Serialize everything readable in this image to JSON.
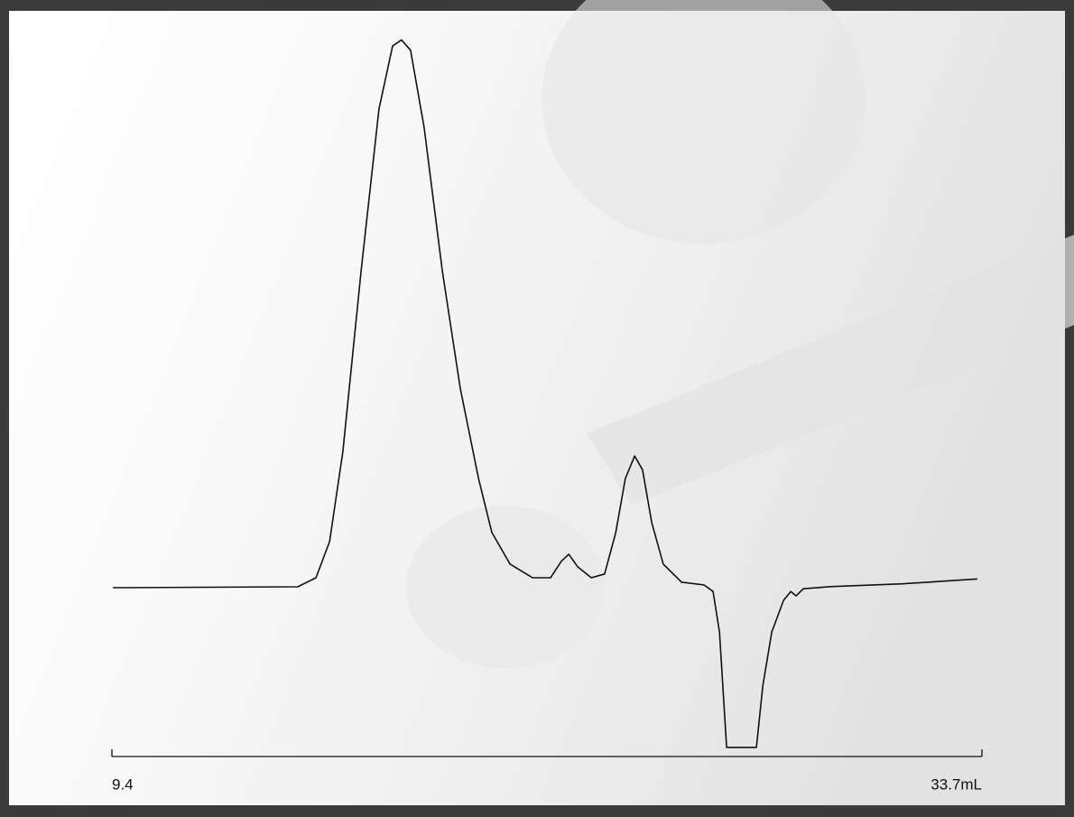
{
  "chart_data": {
    "type": "line",
    "x": [
      9.43,
      14.59,
      15.1,
      15.48,
      15.85,
      16.36,
      16.86,
      17.24,
      17.49,
      17.74,
      18.12,
      18.63,
      19.13,
      19.64,
      20.01,
      20.52,
      21.15,
      21.65,
      21.95,
      22.16,
      22.41,
      22.79,
      23.16,
      23.47,
      23.74,
      24.0,
      24.22,
      24.48,
      24.8,
      25.31,
      25.94,
      26.19,
      26.37,
      26.57,
      27.4,
      27.58,
      27.83,
      28.16,
      28.36,
      28.51,
      28.71,
      29.47,
      31.48,
      33.57
    ],
    "series": [
      {
        "color": "#111111",
        "values": [
          0,
          0.16,
          1.8,
          8.4,
          24.8,
          57.7,
          87.2,
          98.7,
          99.8,
          97.9,
          83.9,
          57.6,
          36.3,
          19.9,
          10.1,
          4.3,
          1.8,
          1.8,
          4.8,
          6.1,
          3.8,
          1.8,
          2.5,
          10.0,
          19.9,
          24.0,
          21.5,
          11.8,
          4.3,
          1.0,
          0.5,
          -0.7,
          -8.1,
          -29.1,
          -29.1,
          -17.9,
          -8.1,
          -2.3,
          -0.7,
          -1.5,
          -0.2,
          0.2,
          0.7,
          1.6
        ]
      }
    ],
    "xlim": [
      9.4,
      33.7
    ],
    "xticks": [
      9.4,
      {
        "value": 33.7,
        "label": "33.7mL"
      }
    ],
    "ylim": [
      -30,
      102
    ]
  }
}
